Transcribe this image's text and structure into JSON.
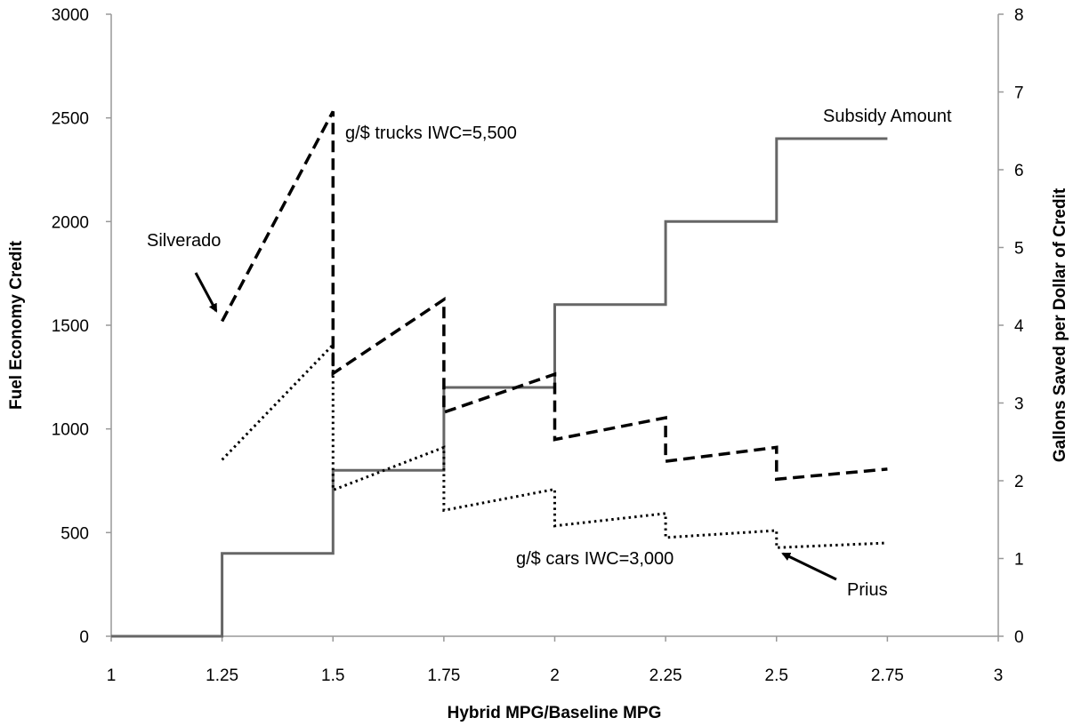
{
  "chart_data": {
    "type": "line",
    "title": "",
    "xlabel": "Hybrid MPG/Baseline MPG",
    "ylabel": "Fuel Economy Credit",
    "y2label": "Gallons Saved per Dollar of Credit",
    "xlim": [
      1,
      3
    ],
    "ylim": [
      0,
      3000
    ],
    "y2lim": [
      0,
      8
    ],
    "x_ticks": [
      "1",
      "1.25",
      "1.5",
      "1.75",
      "2",
      "2.25",
      "2.5",
      "2.75",
      "3"
    ],
    "y_ticks": [
      "0",
      "500",
      "1000",
      "1500",
      "2000",
      "2500",
      "3000"
    ],
    "y2_ticks": [
      "0",
      "1",
      "2",
      "3",
      "4",
      "5",
      "6",
      "7",
      "8"
    ],
    "grid": false,
    "series": [
      {
        "name": "Subsidy Amount",
        "axis": "left",
        "style": "solid",
        "color": "#666666",
        "points": [
          [
            1,
            0
          ],
          [
            1.25,
            0
          ],
          [
            1.25,
            400
          ],
          [
            1.5,
            400
          ],
          [
            1.5,
            800
          ],
          [
            1.75,
            800
          ],
          [
            1.75,
            1200
          ],
          [
            2,
            1200
          ],
          [
            2,
            1600
          ],
          [
            2.25,
            1600
          ],
          [
            2.25,
            2000
          ],
          [
            2.5,
            2000
          ],
          [
            2.5,
            2400
          ],
          [
            2.75,
            2400
          ]
        ]
      },
      {
        "name": "g/$ trucks IWC=5,500",
        "axis": "right",
        "style": "dashed",
        "color": "#000000",
        "points": [
          [
            1.25,
            4.05
          ],
          [
            1.5,
            6.75
          ],
          [
            1.5,
            3.38
          ],
          [
            1.75,
            4.33
          ],
          [
            1.75,
            2.88
          ],
          [
            2,
            3.37
          ],
          [
            2,
            2.53
          ],
          [
            2.25,
            2.81
          ],
          [
            2.25,
            2.25
          ],
          [
            2.5,
            2.43
          ],
          [
            2.5,
            2.02
          ],
          [
            2.75,
            2.15
          ]
        ]
      },
      {
        "name": "g/$ cars IWC=3,000",
        "axis": "right",
        "style": "dotted",
        "color": "#000000",
        "points": [
          [
            1.25,
            2.27
          ],
          [
            1.5,
            3.75
          ],
          [
            1.5,
            1.88
          ],
          [
            1.75,
            2.43
          ],
          [
            1.75,
            1.62
          ],
          [
            2,
            1.89
          ],
          [
            2,
            1.42
          ],
          [
            2.25,
            1.58
          ],
          [
            2.25,
            1.27
          ],
          [
            2.5,
            1.36
          ],
          [
            2.5,
            1.14
          ],
          [
            2.75,
            1.2
          ]
        ]
      }
    ],
    "annotations": [
      {
        "text": "Subsidy Amount"
      },
      {
        "text": "g/$ trucks IWC=5,500"
      },
      {
        "text": "g/$ cars IWC=3,000"
      },
      {
        "text": "Silverado"
      },
      {
        "text": "Prius"
      }
    ]
  }
}
